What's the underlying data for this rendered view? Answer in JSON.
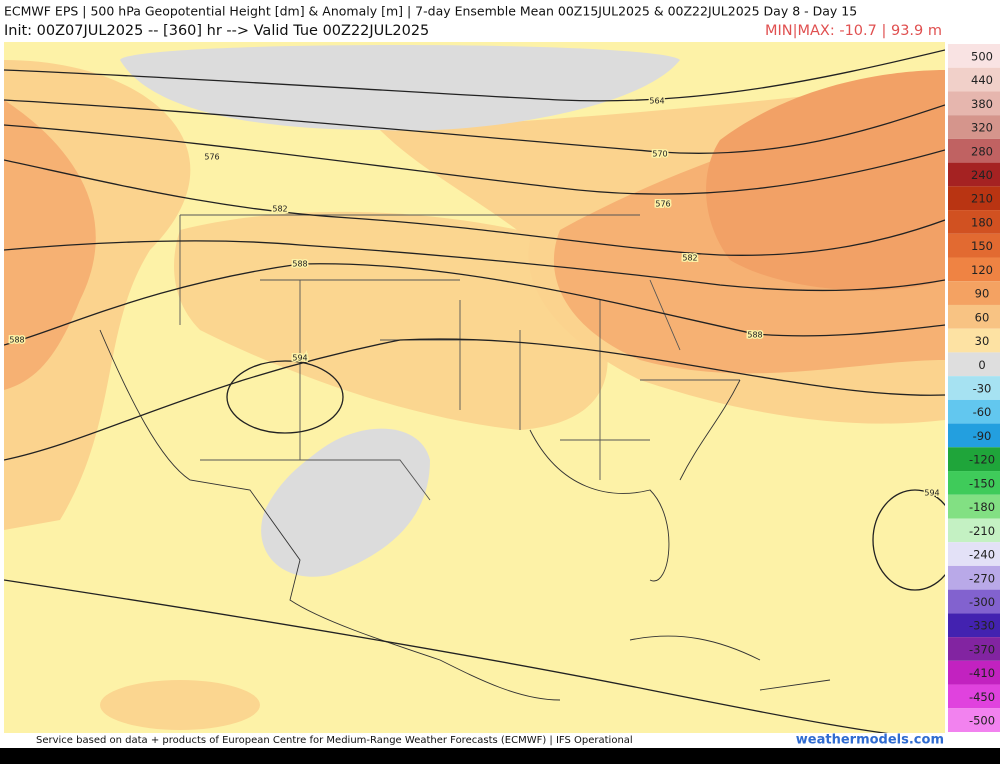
{
  "header": {
    "title": "ECMWF EPS | 500 hPa Geopotential Height [dm] & Anomaly [m] | 7-day Ensemble Mean 00Z15JUL2025 & 00Z22JUL2025  Day 8 - Day 15",
    "subtitle": "Init: 00Z07JUL2025 -- [360] hr --> Valid Tue 00Z22JUL2025",
    "minmax": "MIN|MAX: -10.7 | 93.9 m"
  },
  "colorbar": {
    "levels": [
      500,
      440,
      380,
      320,
      280,
      240,
      210,
      180,
      150,
      120,
      90,
      60,
      30,
      0,
      -30,
      -60,
      -90,
      -120,
      -150,
      -180,
      -210,
      -240,
      -270,
      -300,
      -330,
      -370,
      -410,
      -450,
      -500
    ],
    "colors": [
      "#f9e3e3",
      "#f1d0c9",
      "#e6b6ae",
      "#d5958c",
      "#c06262",
      "#a52222",
      "#b93412",
      "#d15121",
      "#e26a31",
      "#ef8343",
      "#f4a262",
      "#f8c383",
      "#fde2a3",
      "#dedede",
      "#a6e2f2",
      "#62c7ef",
      "#239fdf",
      "#1fa53a",
      "#3fcb5a",
      "#82e083",
      "#c4f1c3",
      "#e3e1f7",
      "#b9a9e8",
      "#8262cf",
      "#4322b0",
      "#8224a1",
      "#c222c0",
      "#e042de",
      "#f282ef"
    ]
  },
  "map": {
    "contour_labels": [
      564,
      570,
      576,
      576,
      582,
      582,
      588,
      588,
      588,
      594,
      594
    ]
  },
  "footer": {
    "source": "Service based on data + products of European Centre for Medium-Range Weather Forecasts (ECMWF) | IFS Operational",
    "credit": "weathermodels.com"
  }
}
